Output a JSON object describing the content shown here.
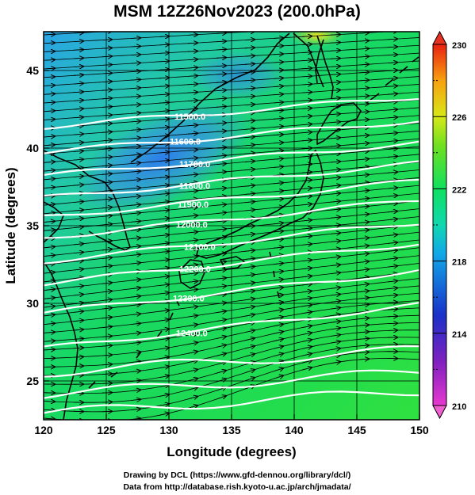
{
  "title": "MSM 12Z26Nov2023 (200.0hPa)",
  "xlabel": "Longitude (degrees)",
  "ylabel": "Latitude  (degrees)",
  "xticks": [
    "120",
    "125",
    "130",
    "135",
    "140",
    "145",
    "150"
  ],
  "yticks": [
    "25",
    "30",
    "35",
    "40",
    "45"
  ],
  "colorbar": {
    "ticks": [
      "210",
      "214",
      "218",
      "222",
      "226",
      "230"
    ],
    "colors": {
      "low": "#e020d0",
      "blue": "#1030c0",
      "cyan": "#10c8e0",
      "green": "#10e060",
      "yellow": "#e8e820",
      "high": "#e83020"
    }
  },
  "contour_labels": [
    "11500.0",
    "11600.0",
    "11700.0",
    "11800.0",
    "11900.0",
    "12000.0",
    "12100.0",
    "12200.0",
    "12300.0",
    "12400.0"
  ],
  "credits": {
    "line1": "Drawing by DCL (https://www.gfd-dennou.org/library/dcl/)",
    "line2": "Data from http://database.rish.kyoto-u.ac.jp/arch/jmadata/"
  },
  "chart_data": {
    "type": "map",
    "field": "temperature (shading, K), geopotential height (contours, m), wind (streamlines)",
    "level": "200.0hPa",
    "x_range": [
      120,
      150
    ],
    "y_range": [
      22.5,
      47.5
    ],
    "colorbar_range": [
      210,
      230
    ]
  }
}
